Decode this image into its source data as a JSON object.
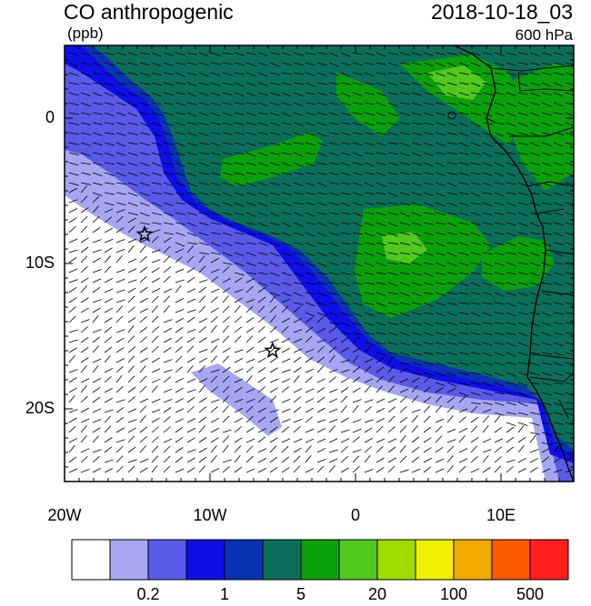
{
  "header": {
    "title": "CO anthropogenic",
    "units": "(ppb)",
    "date": "2018-10-18_03",
    "level": "600 hPa"
  },
  "axes": {
    "lat_labels": [
      {
        "label": "0",
        "value": 0
      },
      {
        "label": "10S",
        "value": -10
      },
      {
        "label": "20S",
        "value": -20
      }
    ],
    "lon_labels": [
      {
        "label": "20W",
        "value": -20
      },
      {
        "label": "10W",
        "value": -10
      },
      {
        "label": "0",
        "value": 0
      },
      {
        "label": "10E",
        "value": 10
      }
    ],
    "lat_range": [
      -25,
      5
    ],
    "lon_range": [
      -20,
      15
    ]
  },
  "colorbar": {
    "colors": [
      "#ffffff",
      "#a6a6f2",
      "#5a5ae8",
      "#0e0ee6",
      "#0a32b4",
      "#0a6e5a",
      "#0aa00a",
      "#50c81e",
      "#a0dc00",
      "#f0f000",
      "#f0aa00",
      "#ff5a00",
      "#ff1e1e"
    ],
    "labels": [
      {
        "text": "0.2",
        "boundary": 2
      },
      {
        "text": "1",
        "boundary": 4
      },
      {
        "text": "5",
        "boundary": 6
      },
      {
        "text": "20",
        "boundary": 8
      },
      {
        "text": "100",
        "boundary": 10
      },
      {
        "text": "500",
        "boundary": 12
      }
    ]
  },
  "markers": [
    {
      "name": "star-marker",
      "lon": -14.5,
      "lat": -8
    },
    {
      "name": "star-marker",
      "lon": -5.7,
      "lat": -16
    }
  ]
}
